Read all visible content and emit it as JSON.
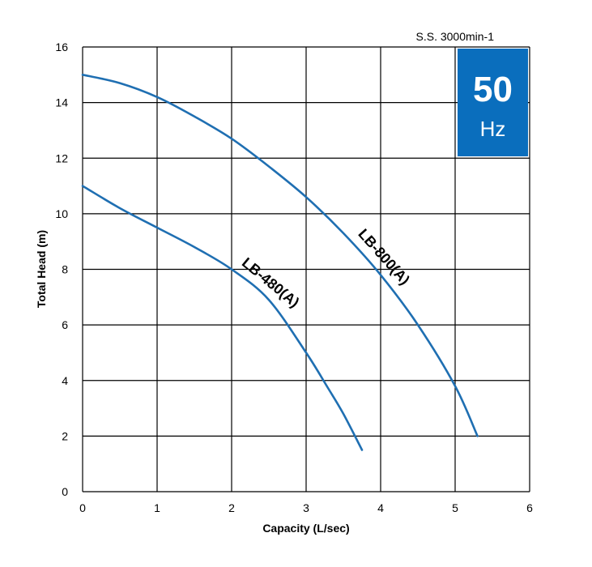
{
  "chart_data": {
    "type": "line",
    "xlabel": "Capacity (L/sec)",
    "ylabel": "Total Head (m)",
    "xlim": [
      0,
      6
    ],
    "ylim": [
      0,
      16
    ],
    "xticks": [
      "0",
      "1",
      "2",
      "3",
      "4",
      "5",
      "6"
    ],
    "yticks": [
      "0",
      "2",
      "4",
      "6",
      "8",
      "10",
      "12",
      "14",
      "16"
    ],
    "grid": true,
    "annotation": "S.S. 3000min-1",
    "badge": {
      "number": "50",
      "unit": "Hz",
      "color": "#0a6ebd"
    },
    "line_color": "#1f6fb2",
    "series": [
      {
        "name": "LB-800(A)",
        "label_text": "LB-800(A)",
        "x": [
          0,
          0.5,
          1.0,
          1.5,
          2.0,
          2.5,
          3.0,
          3.5,
          4.0,
          4.5,
          5.0,
          5.3
        ],
        "y": [
          15.0,
          14.7,
          14.2,
          13.5,
          12.7,
          11.7,
          10.6,
          9.3,
          7.8,
          6.0,
          3.8,
          2.0
        ]
      },
      {
        "name": "LB-480(A)",
        "label_text": "LB-480(A)",
        "x": [
          0,
          0.5,
          1.0,
          1.5,
          2.0,
          2.5,
          3.0,
          3.3,
          3.5,
          3.75
        ],
        "y": [
          11.0,
          10.2,
          9.5,
          8.8,
          8.0,
          6.9,
          5.0,
          3.7,
          2.8,
          1.5
        ]
      }
    ]
  }
}
